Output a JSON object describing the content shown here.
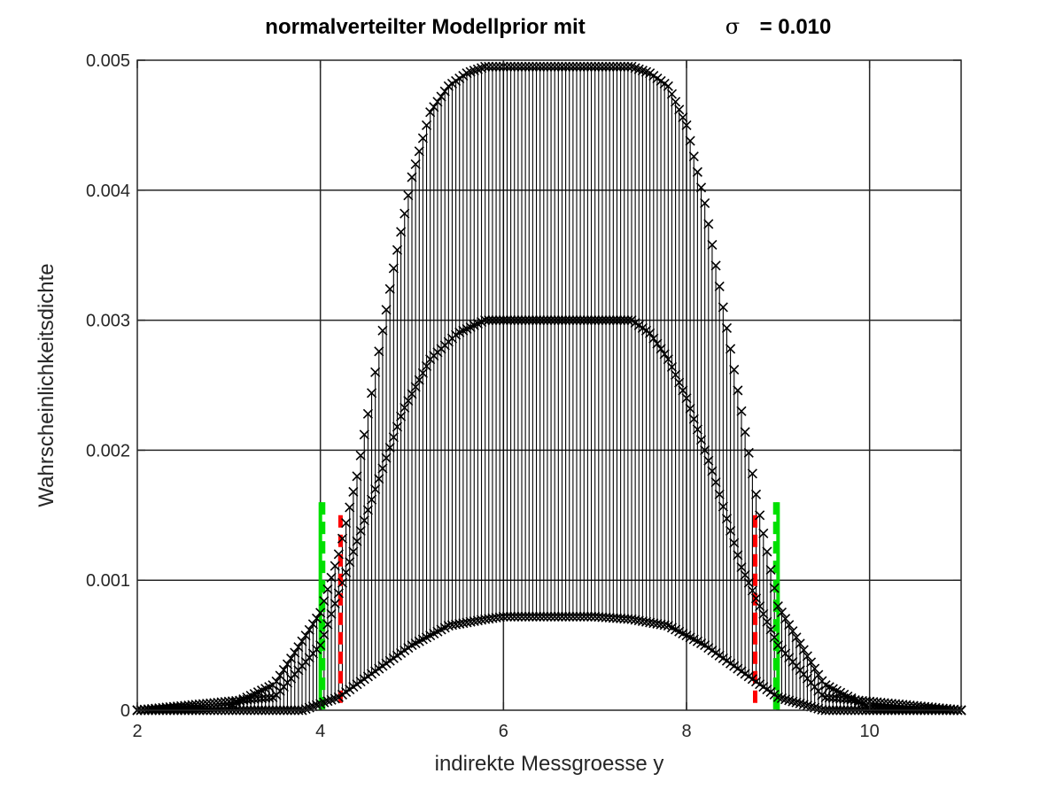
{
  "chart_data": {
    "type": "line",
    "title": "normalverteilter Modellprior mit",
    "title_sigma_symbol": "σ",
    "title_sigma_value": "= 0.010",
    "xlabel": "indirekte Messgroesse y",
    "ylabel": "Wahrscheinlichkeitsdichte",
    "xlim": [
      2,
      11
    ],
    "ylim": [
      0,
      0.005
    ],
    "xticks": [
      2,
      4,
      6,
      8,
      10
    ],
    "xtick_labels": [
      "2",
      "4",
      "6",
      "8",
      "10"
    ],
    "yticks": [
      0,
      0.001,
      0.002,
      0.003,
      0.004,
      0.005
    ],
    "ytick_labels": [
      "0",
      "0.001",
      "0.002",
      "0.003",
      "0.004",
      "0.005"
    ],
    "grid": true,
    "series": [
      {
        "marker": "x",
        "color": "#000000",
        "x": [
          2.0,
          3.0,
          3.5,
          4.0,
          4.2,
          4.4,
          4.6,
          4.8,
          5.0,
          5.2,
          5.4,
          5.6,
          5.8,
          6.0,
          6.5,
          7.0,
          7.4,
          7.6,
          7.8,
          8.0,
          8.2,
          8.4,
          8.6,
          8.8,
          9.0,
          9.5,
          10.0,
          11.0
        ],
        "y": [
          0.0,
          3e-05,
          0.0002,
          0.00075,
          0.0012,
          0.0018,
          0.0026,
          0.0034,
          0.0041,
          0.0046,
          0.0048,
          0.0049,
          0.00495,
          0.00495,
          0.00495,
          0.00495,
          0.00495,
          0.0049,
          0.0048,
          0.0045,
          0.0039,
          0.0031,
          0.0023,
          0.0015,
          0.0008,
          0.0002,
          2e-05,
          0.0
        ]
      },
      {
        "marker": "x",
        "color": "#000000",
        "x": [
          2.0,
          3.5,
          4.0,
          4.3,
          4.6,
          4.9,
          5.2,
          5.5,
          5.8,
          6.0,
          6.5,
          7.0,
          7.4,
          7.6,
          7.8,
          8.0,
          8.3,
          8.6,
          9.0,
          9.5,
          11.0
        ],
        "y": [
          0.0,
          0.0001,
          0.0005,
          0.0011,
          0.0017,
          0.0023,
          0.0027,
          0.0029,
          0.003,
          0.003,
          0.003,
          0.003,
          0.003,
          0.0029,
          0.0027,
          0.0024,
          0.0018,
          0.0011,
          0.0005,
          0.0001,
          0.0
        ]
      },
      {
        "marker": "x",
        "color": "#000000",
        "x": [
          2.0,
          3.8,
          4.2,
          4.6,
          5.0,
          5.4,
          5.8,
          6.0,
          7.0,
          7.4,
          7.8,
          8.2,
          8.6,
          9.0,
          9.5,
          11.0
        ],
        "y": [
          0.0,
          0.0,
          0.0001,
          0.0003,
          0.0005,
          0.00065,
          0.0007,
          0.00072,
          0.00072,
          0.0007,
          0.00065,
          0.0005,
          0.0003,
          0.0001,
          0.0,
          0.0
        ]
      }
    ],
    "vlines": [
      {
        "x": 4.0,
        "y_top": 0.0016,
        "color": "#00e000",
        "style": "solid"
      },
      {
        "x": 4.03,
        "y_top": 0.0016,
        "color": "#00e000",
        "style": "dashed"
      },
      {
        "x": 4.22,
        "y_top": 0.0015,
        "color": "#ff0000",
        "style": "dashed"
      },
      {
        "x": 8.75,
        "y_top": 0.0015,
        "color": "#ff0000",
        "style": "dashed"
      },
      {
        "x": 8.97,
        "y_top": 0.0016,
        "color": "#00e000",
        "style": "dashed"
      },
      {
        "x": 9.0,
        "y_top": 0.0016,
        "color": "#00e000",
        "style": "solid"
      }
    ]
  }
}
